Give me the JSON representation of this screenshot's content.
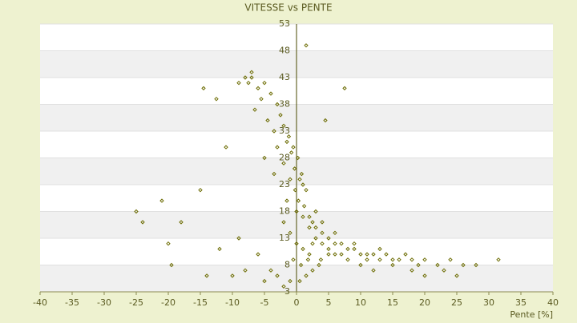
{
  "chart_data": {
    "type": "scatter",
    "title": "VITESSE vs PENTE",
    "x_label": "Pente [%]",
    "color": "#6b6b00",
    "xlim": [
      -40,
      40
    ],
    "xticks": [
      -40,
      -35,
      -30,
      -25,
      -20,
      -15,
      -10,
      -5,
      0,
      5,
      10,
      15,
      20,
      25,
      30,
      35,
      40
    ],
    "ylim": [
      3,
      53
    ],
    "yticks": [
      3,
      8,
      13,
      18,
      23,
      28,
      33,
      38,
      43,
      48,
      53
    ],
    "grid": true,
    "series": [
      {
        "name": "VITESSE",
        "color": "#6b6b00",
        "x": [
          0.2,
          -0.5,
          0.8,
          -1.2,
          1.5,
          -0.3,
          0.5,
          -0.8,
          1.0,
          -1.5,
          0.3,
          -0.2,
          1.2,
          2.0,
          -2.0,
          -2.5,
          2.5,
          3.0,
          -3.0,
          0.0,
          -4,
          -5,
          -6,
          -7,
          -3.5,
          -4.5,
          -5.5,
          -6.5,
          -7.5,
          -8,
          -25,
          -24,
          -20,
          -19.5,
          -15,
          -14,
          -12,
          -10,
          -9,
          -8,
          4,
          5,
          6,
          7,
          8,
          9,
          10,
          11,
          12,
          13,
          14,
          15,
          16,
          17,
          18,
          19,
          20,
          22,
          24,
          26,
          0.5,
          1.5,
          2.5,
          3.5,
          -1.0,
          -2.0,
          -3.0,
          -4.0,
          -5.0,
          -6.0,
          1.5,
          7.5,
          4.5,
          -14.5,
          -9,
          -7,
          -11,
          -12.5,
          -18,
          -21,
          1,
          2,
          3,
          4,
          5,
          6,
          -1,
          -2,
          -3,
          -1.5,
          8,
          10,
          12,
          15,
          18,
          20,
          23,
          25,
          28,
          31.5,
          -1,
          0,
          1,
          2,
          -2,
          -0.5,
          0.7,
          1.8,
          -3.5,
          -5,
          6,
          7,
          9,
          11,
          13,
          3,
          4,
          5,
          2.5,
          3.8
        ],
        "values": [
          28,
          30,
          25,
          32,
          22,
          26,
          24,
          29,
          23,
          31,
          20,
          22,
          19,
          17,
          34,
          36,
          16,
          15,
          38,
          18,
          40,
          42,
          41,
          43,
          33,
          35,
          39,
          37,
          42,
          43,
          18,
          16,
          12,
          8,
          22,
          6,
          11,
          6,
          13,
          7,
          14,
          13,
          12,
          12,
          11,
          11,
          10,
          10,
          10,
          9,
          10,
          9,
          9,
          10,
          9,
          8,
          9,
          8,
          9,
          8,
          5,
          6,
          7,
          8,
          5,
          4,
          6,
          7,
          5,
          10,
          49,
          41,
          35,
          41,
          42,
          44,
          30,
          39,
          16,
          20,
          17,
          15,
          13,
          12,
          11,
          10,
          24,
          27,
          30,
          20,
          9,
          8,
          7,
          8,
          7,
          6,
          7,
          6,
          8,
          9,
          14,
          12,
          11,
          10,
          16,
          9,
          8,
          9,
          25,
          28,
          14,
          10,
          12,
          9,
          11,
          18,
          16,
          10,
          12,
          9
        ]
      }
    ]
  }
}
